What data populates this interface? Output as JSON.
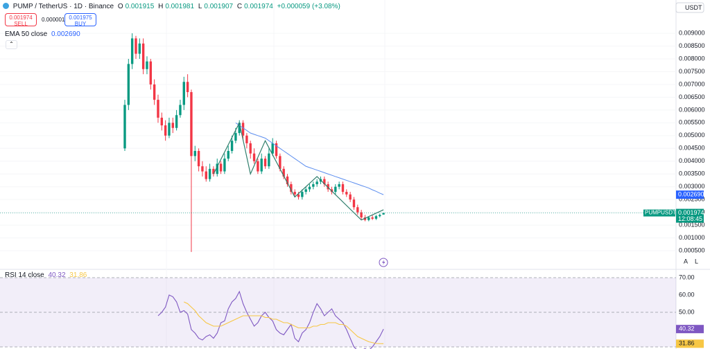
{
  "chart_data": [
    {
      "type": "candlestick",
      "title": "PUMP / TetherUS · 1D · Binance",
      "ohlc_keys": [
        "O",
        "H",
        "L",
        "C"
      ],
      "change_label": "+0.000059 (+3.08%)",
      "sell_label": "SELL",
      "sell_price": 0.001974,
      "spread": 1e-06,
      "buy_label": "BUY",
      "buy_price": 0.001975,
      "currency": "USDT",
      "symbol": "PUMPUSDT",
      "countdown": "12:08:45",
      "scale_buttons": [
        "A",
        "L"
      ],
      "up_color": "#089981",
      "down_color": "#f23645",
      "open": [
        0.0045,
        0.0062,
        0.0078,
        0.0088,
        0.0082,
        0.0086,
        0.0076,
        0.0079,
        0.007,
        0.0064,
        0.0057,
        0.0054,
        0.005,
        0.0055,
        0.0053,
        0.0058,
        0.0062,
        0.0071,
        0.0067,
        0.0042,
        0.0044,
        0.0038,
        0.0036,
        0.0033,
        0.0037,
        0.0035,
        0.0039,
        0.0036,
        0.0041,
        0.0044,
        0.0048,
        0.0051,
        0.0055,
        0.005,
        0.0047,
        0.0043,
        0.004,
        0.0036,
        0.0041,
        0.0038,
        0.0043,
        0.0047,
        0.0042,
        0.0037,
        0.0034,
        0.0031,
        0.0028,
        0.0027,
        0.0026,
        0.0028,
        0.0029,
        0.003,
        0.0031,
        0.0032,
        0.0033,
        0.0031,
        0.0029,
        0.0028,
        0.003,
        0.0031,
        0.0028,
        0.0027,
        0.0025,
        0.0022,
        0.002,
        0.0018,
        0.0017,
        0.0018,
        0.00175,
        0.00185,
        0.001915
      ],
      "high": [
        0.0064,
        0.008,
        0.009,
        0.0089,
        0.0088,
        0.0088,
        0.0081,
        0.008,
        0.0072,
        0.0066,
        0.0059,
        0.0056,
        0.0057,
        0.0057,
        0.006,
        0.0064,
        0.0073,
        0.0074,
        0.0068,
        0.0046,
        0.0045,
        0.004,
        0.0038,
        0.0039,
        0.0038,
        0.0041,
        0.004,
        0.0043,
        0.0046,
        0.005,
        0.0053,
        0.0056,
        0.0056,
        0.0051,
        0.0048,
        0.0045,
        0.0041,
        0.0043,
        0.0042,
        0.0045,
        0.0049,
        0.0048,
        0.0043,
        0.0038,
        0.0035,
        0.0032,
        0.0029,
        0.0028,
        0.0029,
        0.003,
        0.0031,
        0.0032,
        0.0033,
        0.0034,
        0.0034,
        0.0032,
        0.003,
        0.0031,
        0.0032,
        0.0032,
        0.0029,
        0.0028,
        0.0026,
        0.0023,
        0.0021,
        0.0019,
        0.00185,
        0.00188,
        0.0019,
        0.00195,
        0.001981
      ],
      "low": [
        0.0044,
        0.006,
        0.0076,
        0.008,
        0.008,
        0.0074,
        0.0074,
        0.0068,
        0.0062,
        0.0055,
        0.0052,
        0.0048,
        0.0049,
        0.0051,
        0.0052,
        0.0057,
        0.006,
        0.0065,
        0.00045,
        0.004,
        0.0036,
        0.0034,
        0.0032,
        0.0032,
        0.0034,
        0.0034,
        0.0035,
        0.0035,
        0.004,
        0.0043,
        0.0047,
        0.005,
        0.0048,
        0.0045,
        0.0041,
        0.0039,
        0.0035,
        0.0035,
        0.0037,
        0.0037,
        0.0042,
        0.0041,
        0.0036,
        0.0033,
        0.003,
        0.0027,
        0.0026,
        0.0025,
        0.0025,
        0.0027,
        0.0028,
        0.0029,
        0.003,
        0.0031,
        0.003,
        0.0028,
        0.0027,
        0.0027,
        0.0029,
        0.0027,
        0.0026,
        0.0024,
        0.0021,
        0.0019,
        0.0017,
        0.00165,
        0.00165,
        0.0017,
        0.0017,
        0.0018,
        0.001907
      ],
      "close": [
        0.0062,
        0.0078,
        0.0088,
        0.0082,
        0.0086,
        0.0076,
        0.0079,
        0.007,
        0.0064,
        0.0057,
        0.0054,
        0.005,
        0.0055,
        0.0053,
        0.0058,
        0.0062,
        0.0071,
        0.0067,
        0.0042,
        0.0044,
        0.0038,
        0.0036,
        0.0033,
        0.0037,
        0.0035,
        0.0039,
        0.0036,
        0.0041,
        0.0044,
        0.0048,
        0.0051,
        0.0055,
        0.005,
        0.0047,
        0.0043,
        0.004,
        0.0036,
        0.0041,
        0.0038,
        0.0043,
        0.0047,
        0.0042,
        0.0037,
        0.0034,
        0.0031,
        0.0028,
        0.0027,
        0.0026,
        0.0028,
        0.0029,
        0.003,
        0.0031,
        0.0032,
        0.0033,
        0.0031,
        0.0029,
        0.0028,
        0.003,
        0.0031,
        0.0028,
        0.0027,
        0.0025,
        0.0022,
        0.002,
        0.0018,
        0.0017,
        0.0018,
        0.00175,
        0.00185,
        0.0019,
        0.001974
      ],
      "ema": {
        "name": "EMA 50 close",
        "color": "#5b8def",
        "last_label": "0.002690",
        "values": [
          null,
          null,
          null,
          null,
          null,
          null,
          null,
          null,
          null,
          null,
          null,
          null,
          null,
          null,
          null,
          null,
          null,
          null,
          null,
          null,
          null,
          null,
          null,
          null,
          null,
          null,
          null,
          null,
          null,
          null,
          0.0055,
          0.0054,
          0.0053,
          0.0052,
          0.0051,
          0.00505,
          0.005,
          0.00495,
          0.0049,
          0.0048,
          0.0047,
          0.0046,
          0.0045,
          0.0044,
          0.0043,
          0.0042,
          0.0041,
          0.004,
          0.0039,
          0.0038,
          0.00375,
          0.0037,
          0.00365,
          0.0036,
          0.00355,
          0.0035,
          0.00345,
          0.0034,
          0.00335,
          0.0033,
          0.00325,
          0.0032,
          0.00315,
          0.0031,
          0.00305,
          0.003,
          0.00295,
          0.00288,
          0.00282,
          0.00275,
          0.00269
        ]
      },
      "pattern": {
        "color": "#2e7d6b",
        "x": [
          24,
          31,
          34,
          38,
          46,
          52,
          64,
          70
        ],
        "values": [
          0.0035,
          0.0055,
          0.0035,
          0.0048,
          0.0026,
          0.0034,
          0.0017,
          0.0021
        ]
      },
      "ylim": [
        0,
        0.00976
      ],
      "yticks": [
        {
          "value": 0.0005,
          "label": "0.000500"
        },
        {
          "value": 0.001,
          "label": "0.001000"
        },
        {
          "value": 0.0015,
          "label": "0.001500"
        },
        {
          "value": 0.002,
          "label": "0.002000"
        },
        {
          "value": 0.0025,
          "label": "0.002500"
        },
        {
          "value": 0.003,
          "label": "0.003000"
        },
        {
          "value": 0.0035,
          "label": "0.003500"
        },
        {
          "value": 0.004,
          "label": "0.004000"
        },
        {
          "value": 0.0045,
          "label": "0.004500"
        },
        {
          "value": 0.005,
          "label": "0.005000"
        },
        {
          "value": 0.0055,
          "label": "0.005500"
        },
        {
          "value": 0.006,
          "label": "0.006000"
        },
        {
          "value": 0.0065,
          "label": "0.006500"
        },
        {
          "value": 0.007,
          "label": "0.007000"
        },
        {
          "value": 0.0075,
          "label": "0.007500"
        },
        {
          "value": 0.008,
          "label": "0.008000"
        },
        {
          "value": 0.0085,
          "label": "0.008500"
        },
        {
          "value": 0.009,
          "label": "0.009000"
        }
      ],
      "grid": true
    },
    {
      "type": "line",
      "title": "RSI 14 close",
      "series": [
        {
          "name": "RSI",
          "color": "#7e57c2",
          "values": [
            null,
            null,
            null,
            null,
            null,
            null,
            null,
            null,
            null,
            48,
            50,
            53,
            60,
            59,
            56,
            50,
            51,
            49,
            40,
            38,
            35,
            34,
            36,
            37,
            35,
            38,
            44,
            45,
            52,
            56,
            58,
            62,
            55,
            50,
            46,
            42,
            44,
            48,
            50,
            47,
            45,
            40,
            38,
            37,
            40,
            43,
            35,
            33,
            38,
            40,
            44,
            50,
            55,
            52,
            48,
            50,
            52,
            48,
            46,
            44,
            40,
            35,
            30,
            28,
            28,
            29,
            28,
            30,
            33,
            36,
            40.32
          ]
        },
        {
          "name": "RSI MA",
          "color": "#f7c744",
          "values": [
            null,
            null,
            null,
            null,
            null,
            null,
            null,
            null,
            null,
            null,
            null,
            null,
            null,
            null,
            null,
            null,
            56,
            55,
            53,
            51,
            48,
            46,
            44,
            43,
            42,
            42,
            42,
            43,
            44,
            45,
            46,
            47,
            48,
            48,
            48,
            48,
            48,
            48,
            47,
            47,
            46,
            46,
            45,
            44,
            44,
            43,
            42,
            41,
            41,
            41,
            41,
            42,
            42,
            43,
            43,
            44,
            44,
            44,
            43,
            43,
            42,
            40,
            38,
            36,
            35,
            34,
            33,
            32.5,
            32,
            31.9,
            31.86
          ]
        }
      ],
      "levels": [
        70,
        50,
        30
      ],
      "ylim": [
        28.8,
        70.4
      ],
      "yticks": [
        {
          "value": 70,
          "label": "70.00"
        },
        {
          "value": 60,
          "label": "60.00"
        },
        {
          "value": 50,
          "label": "50.00"
        }
      ]
    }
  ]
}
